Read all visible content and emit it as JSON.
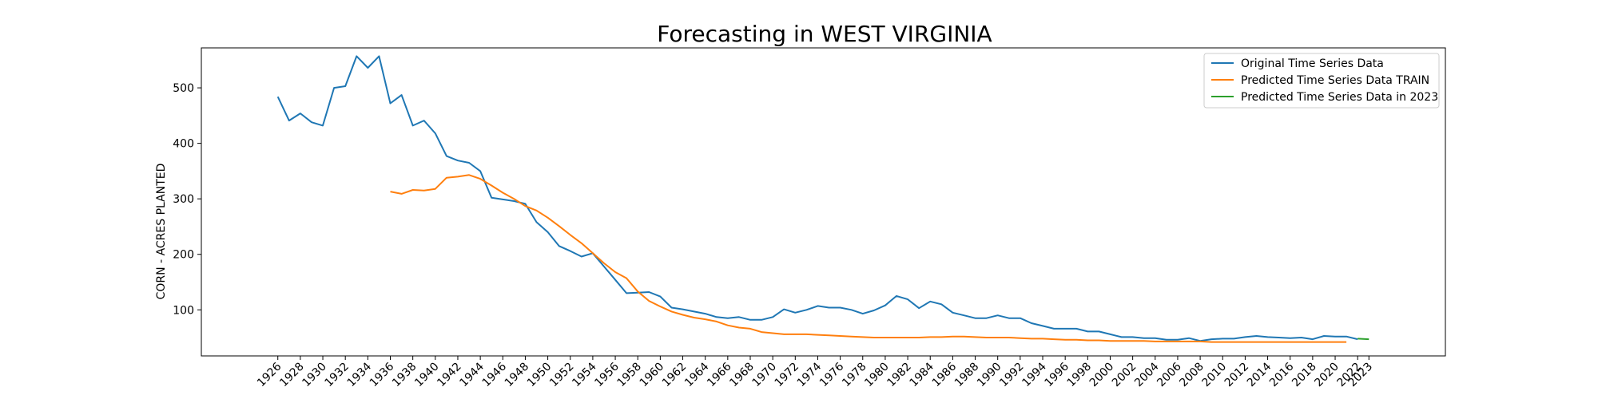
{
  "chart_data": {
    "type": "line",
    "title": "Forecasting in WEST VIRGINIA",
    "xlabel": "",
    "ylabel": "CORN - ACRES PLANTED",
    "xlim": [
      1919.2,
      2029.8
    ],
    "ylim": [
      17,
      572
    ],
    "x_ticks": [
      1926,
      1928,
      1930,
      1932,
      1934,
      1936,
      1938,
      1940,
      1942,
      1944,
      1946,
      1948,
      1950,
      1952,
      1954,
      1956,
      1958,
      1960,
      1962,
      1964,
      1966,
      1968,
      1970,
      1972,
      1974,
      1976,
      1978,
      1980,
      1982,
      1984,
      1986,
      1988,
      1990,
      1992,
      1994,
      1996,
      1998,
      2000,
      2002,
      2004,
      2006,
      2008,
      2010,
      2012,
      2014,
      2016,
      2018,
      2020,
      2022,
      2023
    ],
    "y_ticks": [
      100,
      200,
      300,
      400,
      500
    ],
    "legend_position": "top-right",
    "grid": false,
    "series": [
      {
        "name": "Original Time Series Data",
        "color": "#1f77b4",
        "x": [
          1926,
          1927,
          1928,
          1929,
          1930,
          1931,
          1932,
          1933,
          1934,
          1935,
          1936,
          1937,
          1938,
          1939,
          1940,
          1941,
          1942,
          1943,
          1944,
          1945,
          1946,
          1947,
          1948,
          1949,
          1950,
          1951,
          1952,
          1953,
          1954,
          1955,
          1956,
          1957,
          1958,
          1959,
          1960,
          1961,
          1962,
          1963,
          1964,
          1965,
          1966,
          1967,
          1968,
          1969,
          1970,
          1971,
          1972,
          1973,
          1974,
          1975,
          1976,
          1977,
          1978,
          1979,
          1980,
          1981,
          1982,
          1983,
          1984,
          1985,
          1986,
          1987,
          1988,
          1989,
          1990,
          1991,
          1992,
          1993,
          1994,
          1995,
          1996,
          1997,
          1998,
          1999,
          2000,
          2001,
          2002,
          2003,
          2004,
          2005,
          2006,
          2007,
          2008,
          2009,
          2010,
          2011,
          2012,
          2013,
          2014,
          2015,
          2016,
          2017,
          2018,
          2019,
          2020,
          2021,
          2022
        ],
        "y": [
          484,
          441,
          454,
          438,
          432,
          500,
          503,
          557,
          536,
          557,
          472,
          487,
          432,
          441,
          418,
          377,
          369,
          365,
          350,
          302,
          299,
          296,
          291,
          258,
          240,
          215,
          206,
          196,
          202,
          178,
          154,
          130,
          131,
          132,
          124,
          104,
          101,
          97,
          93,
          87,
          85,
          87,
          82,
          82,
          87,
          101,
          95,
          100,
          107,
          104,
          104,
          100,
          93,
          99,
          108,
          125,
          119,
          103,
          115,
          110,
          95,
          90,
          85,
          85,
          90,
          85,
          85,
          76,
          71,
          66,
          66,
          66,
          61,
          61,
          56,
          51,
          51,
          49,
          49,
          46,
          46,
          49,
          44,
          47,
          48,
          48,
          51,
          53,
          51,
          50,
          49,
          50,
          47,
          53,
          52,
          52,
          47
        ]
      },
      {
        "name": "Predicted Time Series Data TRAIN",
        "color": "#ff7f0e",
        "x": [
          1936,
          1937,
          1938,
          1939,
          1940,
          1941,
          1942,
          1943,
          1944,
          1945,
          1946,
          1947,
          1948,
          1949,
          1950,
          1951,
          1952,
          1953,
          1954,
          1955,
          1956,
          1957,
          1958,
          1959,
          1960,
          1961,
          1962,
          1963,
          1964,
          1965,
          1966,
          1967,
          1968,
          1969,
          1970,
          1971,
          1972,
          1973,
          1974,
          1975,
          1976,
          1977,
          1978,
          1979,
          1980,
          1981,
          1982,
          1983,
          1984,
          1985,
          1986,
          1987,
          1988,
          1989,
          1990,
          1991,
          1992,
          1993,
          1994,
          1995,
          1996,
          1997,
          1998,
          1999,
          2000,
          2001,
          2002,
          2003,
          2004,
          2005,
          2006,
          2007,
          2008,
          2009,
          2010,
          2011,
          2012,
          2013,
          2014,
          2015,
          2016,
          2017,
          2018,
          2019,
          2020,
          2021
        ],
        "y": [
          313,
          309,
          316,
          315,
          318,
          338,
          340,
          343,
          336,
          324,
          311,
          300,
          287,
          279,
          266,
          251,
          235,
          220,
          202,
          184,
          168,
          157,
          133,
          116,
          106,
          97,
          91,
          86,
          83,
          79,
          72,
          68,
          66,
          60,
          58,
          56,
          56,
          56,
          55,
          54,
          53,
          52,
          51,
          50,
          50,
          50,
          50,
          50,
          51,
          51,
          52,
          52,
          51,
          50,
          50,
          50,
          49,
          48,
          48,
          47,
          46,
          46,
          45,
          45,
          44,
          44,
          44,
          44,
          43,
          43,
          43,
          43,
          43,
          42,
          42,
          42,
          42,
          42,
          42,
          42,
          42,
          42,
          42,
          42,
          42,
          42
        ]
      },
      {
        "name": "Predicted Time Series Data in 2023",
        "color": "#2ca02c",
        "x": [
          2022,
          2023
        ],
        "y": [
          48,
          47
        ]
      }
    ]
  }
}
